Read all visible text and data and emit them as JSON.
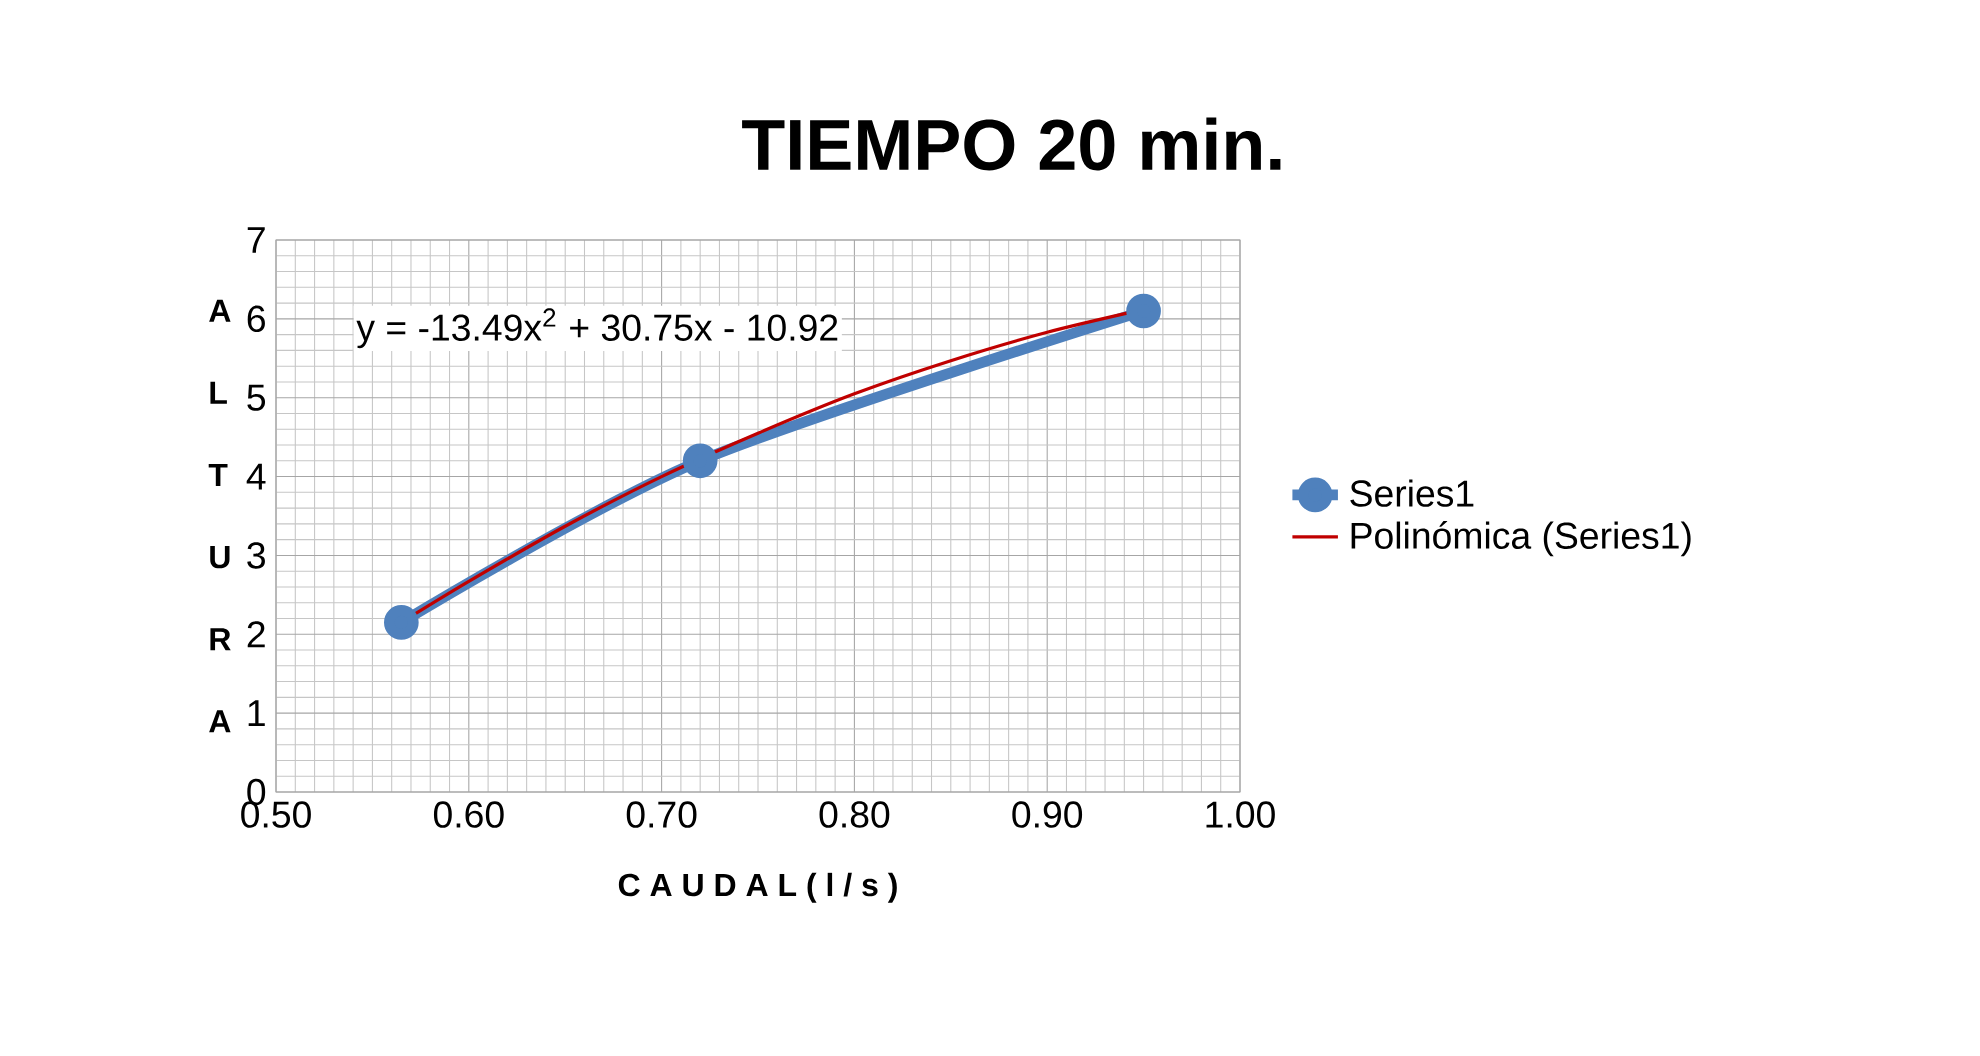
{
  "chart_data": {
    "type": "line",
    "title": "TIEMPO 20 min.",
    "xlabel": "C A U D A L ( l / s )",
    "ylabel": "A L T U R A",
    "xlim": [
      0.5,
      1.0
    ],
    "ylim": [
      0,
      7
    ],
    "xticks": [
      {
        "value": 0.5,
        "label": "0.50"
      },
      {
        "value": 0.6,
        "label": "0.60"
      },
      {
        "value": 0.7,
        "label": "0.70"
      },
      {
        "value": 0.8,
        "label": "0.80"
      },
      {
        "value": 0.9,
        "label": "0.90"
      },
      {
        "value": 1.0,
        "label": "1.00"
      }
    ],
    "yticks": [
      0,
      1,
      2,
      3,
      4,
      5,
      6,
      7
    ],
    "grid": true,
    "legend": "right",
    "marker": "circle",
    "series": [
      {
        "name": "Series1",
        "color": "#4f81bd",
        "x": [
          0.565,
          0.72,
          0.95
        ],
        "values": [
          2.15,
          4.2,
          6.1
        ]
      },
      {
        "name": "Polinómica (Series1)",
        "color": "#c00000",
        "x": [
          0.565,
          0.6,
          0.65,
          0.7,
          0.75,
          0.8,
          0.85,
          0.9,
          0.95
        ],
        "values": [
          2.15,
          2.67,
          3.37,
          4.0,
          4.55,
          5.05,
          5.47,
          5.83,
          6.12
        ],
        "marker": "none"
      }
    ],
    "annotations": [
      "y = -13.49x$^{2}$ + 30.75x - 10.92"
    ]
  }
}
